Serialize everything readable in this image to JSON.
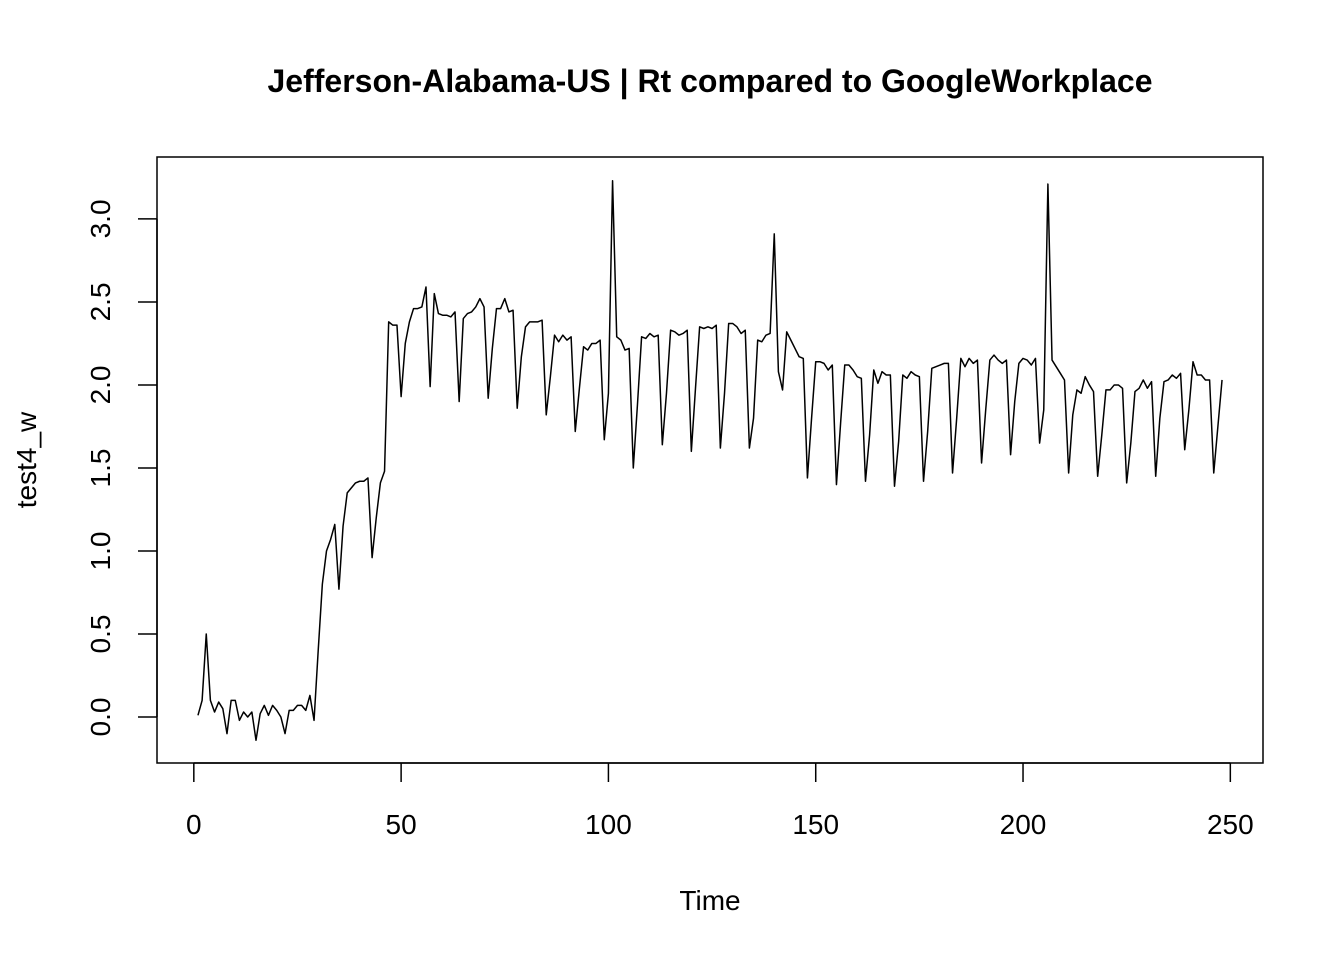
{
  "chart_data": {
    "type": "line",
    "title": "Jefferson-Alabama-US | Rt compared to GoogleWorkplace",
    "xlabel": "Time",
    "ylabel": "test4_w",
    "x": [
      1,
      2,
      3,
      4,
      5,
      6,
      7,
      8,
      9,
      10,
      11,
      12,
      13,
      14,
      15,
      16,
      17,
      18,
      19,
      20,
      21,
      22,
      23,
      24,
      25,
      26,
      27,
      28,
      29,
      30,
      31,
      32,
      33,
      34,
      35,
      36,
      37,
      38,
      39,
      40,
      41,
      42,
      43,
      44,
      45,
      46,
      47,
      48,
      49,
      50,
      51,
      52,
      53,
      54,
      55,
      56,
      57,
      58,
      59,
      60,
      61,
      62,
      63,
      64,
      65,
      66,
      67,
      68,
      69,
      70,
      71,
      72,
      73,
      74,
      75,
      76,
      77,
      78,
      79,
      80,
      81,
      82,
      83,
      84,
      85,
      86,
      87,
      88,
      89,
      90,
      91,
      92,
      93,
      94,
      95,
      96,
      97,
      98,
      99,
      100,
      101,
      102,
      103,
      104,
      105,
      106,
      107,
      108,
      109,
      110,
      111,
      112,
      113,
      114,
      115,
      116,
      117,
      118,
      119,
      120,
      121,
      122,
      123,
      124,
      125,
      126,
      127,
      128,
      129,
      130,
      131,
      132,
      133,
      134,
      135,
      136,
      137,
      138,
      139,
      140,
      141,
      142,
      143,
      144,
      145,
      146,
      147,
      148,
      149,
      150,
      151,
      152,
      153,
      154,
      155,
      156,
      157,
      158,
      159,
      160,
      161,
      162,
      163,
      164,
      165,
      166,
      167,
      168,
      169,
      170,
      171,
      172,
      173,
      174,
      175,
      176,
      177,
      178,
      179,
      180,
      181,
      182,
      183,
      184,
      185,
      186,
      187,
      188,
      189,
      190,
      191,
      192,
      193,
      194,
      195,
      196,
      197,
      198,
      199,
      200,
      201,
      202,
      203,
      204,
      205,
      206,
      207,
      208,
      209,
      210,
      211,
      212,
      213,
      214,
      215,
      216,
      217,
      218,
      219,
      220,
      221,
      222,
      223,
      224,
      225,
      226,
      227,
      228,
      229,
      230,
      231,
      232,
      233,
      234,
      235,
      236,
      237,
      238,
      239,
      240,
      241,
      242,
      243,
      244,
      245,
      246,
      247,
      248
    ],
    "series": [
      {
        "name": "test4_w",
        "color": "#000000",
        "values": [
          0.01,
          0.1,
          0.5,
          0.1,
          0.03,
          0.09,
          0.05,
          -0.1,
          0.1,
          0.1,
          -0.02,
          0.03,
          0.0,
          0.03,
          -0.14,
          0.02,
          0.07,
          0.01,
          0.07,
          0.04,
          0.0,
          -0.1,
          0.04,
          0.04,
          0.07,
          0.07,
          0.04,
          0.13,
          -0.02,
          0.4,
          0.8,
          1.0,
          1.07,
          1.16,
          0.77,
          1.15,
          1.35,
          1.38,
          1.41,
          1.42,
          1.42,
          1.44,
          0.96,
          1.2,
          1.41,
          1.48,
          2.38,
          2.36,
          2.36,
          1.93,
          2.25,
          2.38,
          2.46,
          2.46,
          2.47,
          2.59,
          1.99,
          2.55,
          2.43,
          2.42,
          2.42,
          2.41,
          2.44,
          1.9,
          2.4,
          2.43,
          2.44,
          2.47,
          2.52,
          2.47,
          1.92,
          2.22,
          2.46,
          2.46,
          2.52,
          2.44,
          2.45,
          1.86,
          2.17,
          2.35,
          2.38,
          2.38,
          2.38,
          2.39,
          1.82,
          2.05,
          2.3,
          2.26,
          2.3,
          2.27,
          2.29,
          1.72,
          1.98,
          2.23,
          2.21,
          2.25,
          2.25,
          2.27,
          1.67,
          1.95,
          3.23,
          2.29,
          2.27,
          2.21,
          2.22,
          1.5,
          1.88,
          2.29,
          2.28,
          2.31,
          2.29,
          2.3,
          1.64,
          1.95,
          2.33,
          2.32,
          2.3,
          2.31,
          2.33,
          1.6,
          1.98,
          2.35,
          2.34,
          2.35,
          2.34,
          2.36,
          1.62,
          1.95,
          2.37,
          2.37,
          2.35,
          2.31,
          2.33,
          1.62,
          1.8,
          2.27,
          2.26,
          2.3,
          2.31,
          2.91,
          2.08,
          1.97,
          2.32,
          2.27,
          2.22,
          2.17,
          2.16,
          1.44,
          1.8,
          2.14,
          2.14,
          2.13,
          2.09,
          2.12,
          1.4,
          1.77,
          2.12,
          2.12,
          2.09,
          2.05,
          2.04,
          1.42,
          1.7,
          2.09,
          2.01,
          2.08,
          2.06,
          2.06,
          1.39,
          1.66,
          2.06,
          2.04,
          2.08,
          2.06,
          2.05,
          1.42,
          1.72,
          2.1,
          2.11,
          2.12,
          2.13,
          2.13,
          1.47,
          1.8,
          2.16,
          2.11,
          2.16,
          2.13,
          2.15,
          1.53,
          1.85,
          2.15,
          2.18,
          2.15,
          2.13,
          2.15,
          1.58,
          1.9,
          2.13,
          2.16,
          2.15,
          2.12,
          2.16,
          1.65,
          1.85,
          3.21,
          2.15,
          2.11,
          2.07,
          2.03,
          1.47,
          1.82,
          1.97,
          1.95,
          2.05,
          2.0,
          1.96,
          1.45,
          1.7,
          1.97,
          1.97,
          2.0,
          2.0,
          1.98,
          1.41,
          1.65,
          1.96,
          1.98,
          2.03,
          1.98,
          2.02,
          1.45,
          1.8,
          2.02,
          2.03,
          2.06,
          2.04,
          2.07,
          1.61,
          1.85,
          2.14,
          2.06,
          2.06,
          2.03,
          2.03,
          1.47,
          1.75,
          2.03
        ]
      }
    ],
    "xlim": [
      -8.88,
      257.88
    ],
    "ylim": [
      -0.277,
      3.373
    ],
    "xticks": [
      0,
      50,
      100,
      150,
      200,
      250
    ],
    "yticks": [
      {
        "value": 0,
        "label": "0.0"
      },
      0.5,
      {
        "value": 1,
        "label": "1.0"
      },
      1.5,
      {
        "value": 2,
        "label": "2.0"
      },
      2.5,
      {
        "value": 3,
        "label": "3.0"
      }
    ]
  }
}
